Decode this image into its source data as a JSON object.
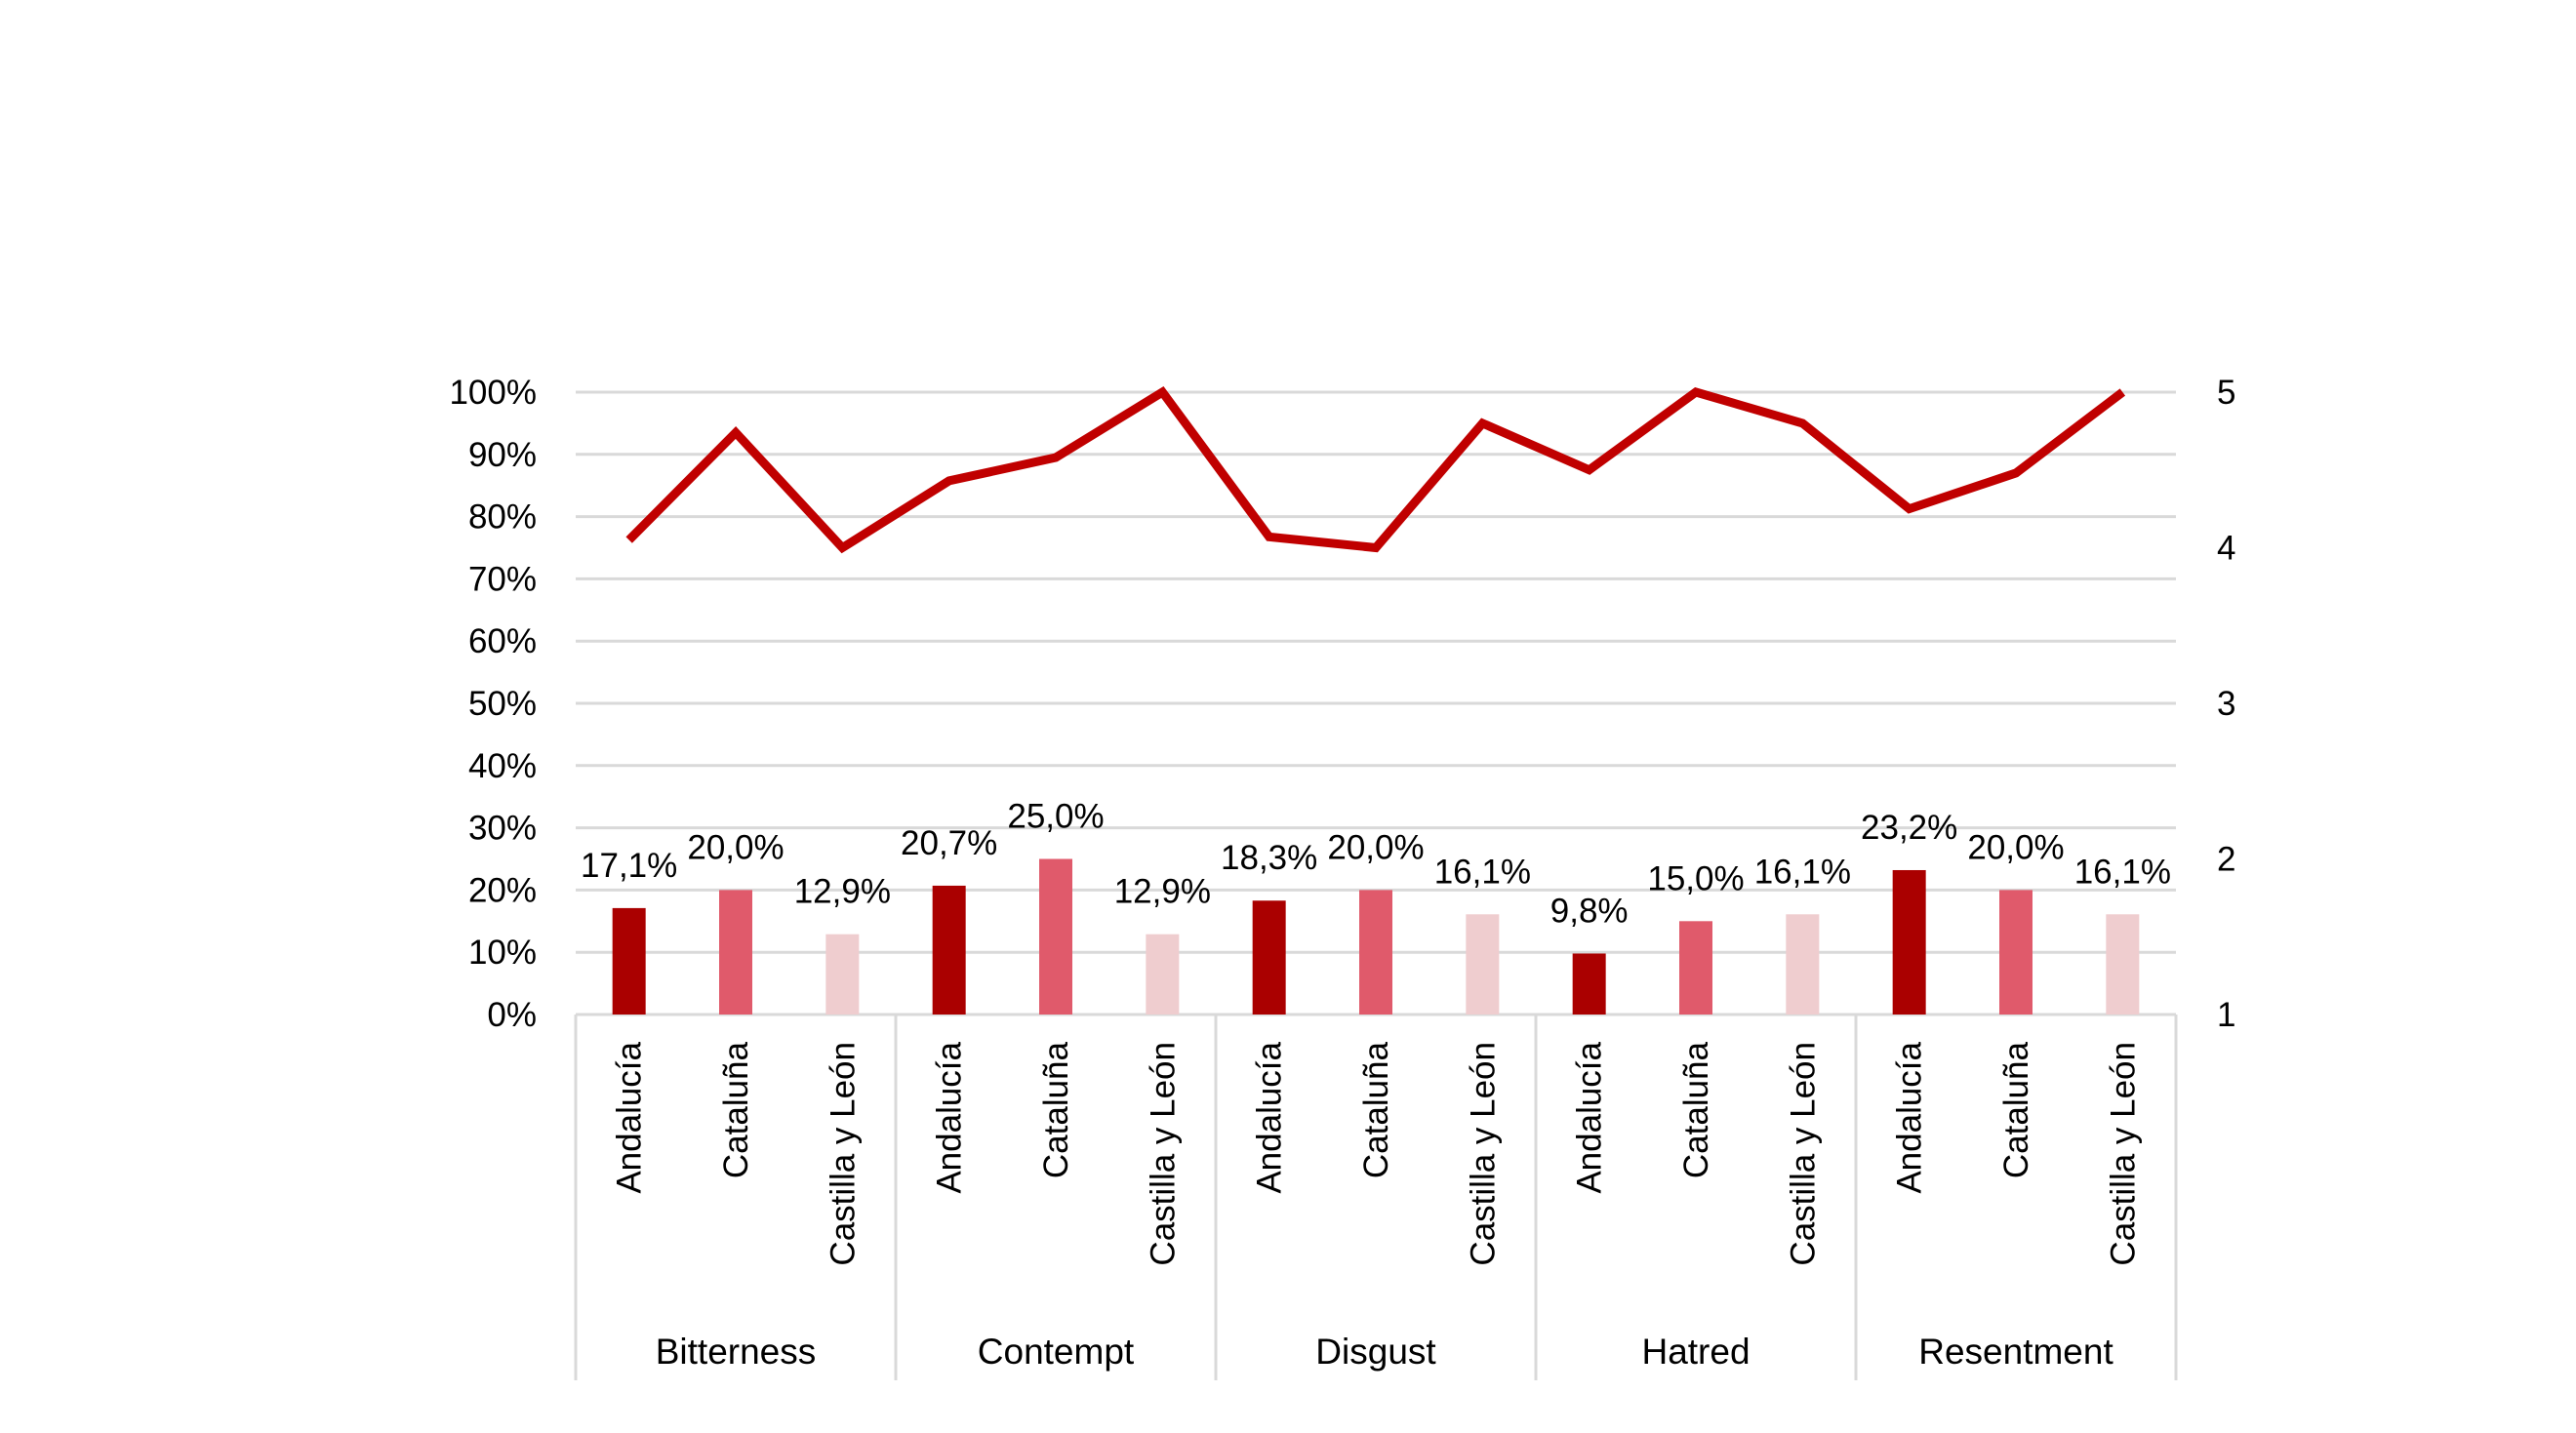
{
  "chart_data": {
    "type": "bar",
    "groups": [
      "Bitterness",
      "Contempt",
      "Disgust",
      "Hatred",
      "Resentment"
    ],
    "categories": [
      "Andalucía",
      "Cataluña",
      "Castilla y León"
    ],
    "series": [
      {
        "type": "bar",
        "values": [
          [
            17.1,
            20.0,
            12.9
          ],
          [
            20.7,
            25.0,
            12.9
          ],
          [
            18.3,
            20.0,
            16.1
          ],
          [
            9.8,
            15.0,
            16.1
          ],
          [
            23.2,
            20.0,
            16.1
          ]
        ],
        "labels": [
          [
            "17,1%",
            "20,0%",
            "12,9%"
          ],
          [
            "20,7%",
            "25,0%",
            "12,9%"
          ],
          [
            "18,3%",
            "20,0%",
            "16,1%"
          ],
          [
            "9,8%",
            "15,0%",
            "16,1%"
          ],
          [
            "23,2%",
            "20,0%",
            "16,1%"
          ]
        ],
        "colors": [
          "#aa0000",
          "#e05a6b",
          "#efcdcf"
        ]
      },
      {
        "type": "line",
        "axis": "right",
        "color": "#c00000",
        "values": [
          [
            4.05,
            4.74,
            4.0
          ],
          [
            4.43,
            4.58,
            5.0
          ],
          [
            4.07,
            4.0,
            4.8
          ],
          [
            4.5,
            5.0,
            4.8
          ],
          [
            4.25,
            4.48,
            5.0
          ]
        ]
      }
    ],
    "y_left": {
      "ylim": [
        0,
        100
      ],
      "ticks": [
        "0%",
        "10%",
        "20%",
        "30%",
        "40%",
        "50%",
        "60%",
        "70%",
        "80%",
        "90%",
        "100%"
      ]
    },
    "y_right": {
      "ylim": [
        1,
        5
      ],
      "ticks": [
        "1",
        "2",
        "3",
        "4",
        "5"
      ]
    },
    "grid": true,
    "legend": "none"
  }
}
